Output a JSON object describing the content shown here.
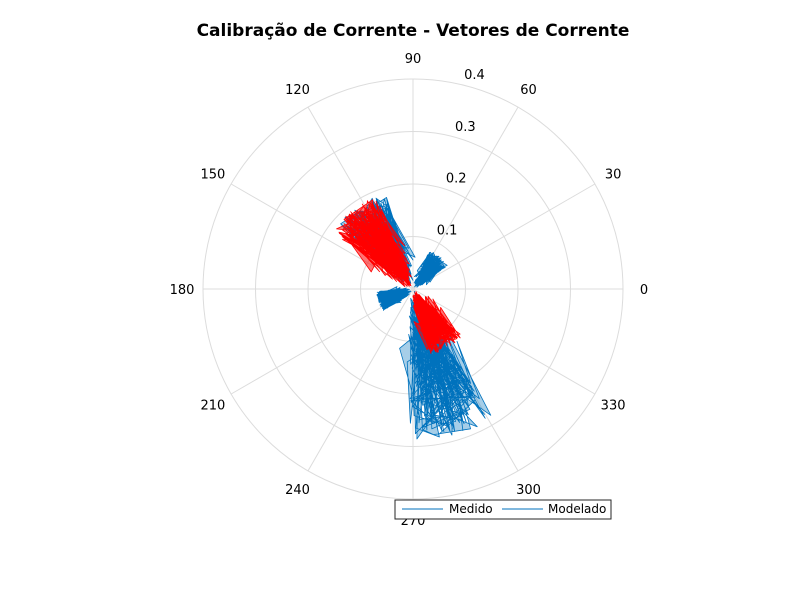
{
  "chart_data": {
    "type": "polar",
    "title": "Calibração de Corrente - Vetores de Corrente",
    "angle_ticks": [
      "0",
      "30",
      "60",
      "90",
      "120",
      "150",
      "180",
      "210",
      "240",
      "270",
      "300",
      "330"
    ],
    "radial_ticks": [
      "0.1",
      "0.2",
      "0.3",
      "0.4"
    ],
    "rlim": [
      0,
      0.4
    ],
    "grid": true,
    "legend": {
      "placement": "bottom-right",
      "entries": [
        "Medido",
        "Modelado"
      ]
    },
    "series": [
      {
        "name": "Medido",
        "color": "#0072BD",
        "description_clusters": [
          {
            "angle_deg": 285,
            "r_min": 0.02,
            "r_max": 0.29
          },
          {
            "angle_deg": 122,
            "r_min": 0.05,
            "r_max": 0.19
          },
          {
            "angle_deg": 50,
            "r_min": 0.02,
            "r_max": 0.08
          },
          {
            "angle_deg": 200,
            "r_min": 0.02,
            "r_max": 0.07
          }
        ]
      },
      {
        "name": "Modelado",
        "color": "#FF0000",
        "description_clusters": [
          {
            "angle_deg": 128,
            "r_min": 0.02,
            "r_max": 0.19
          },
          {
            "angle_deg": 300,
            "r_min": 0.02,
            "r_max": 0.13
          }
        ]
      }
    ]
  }
}
